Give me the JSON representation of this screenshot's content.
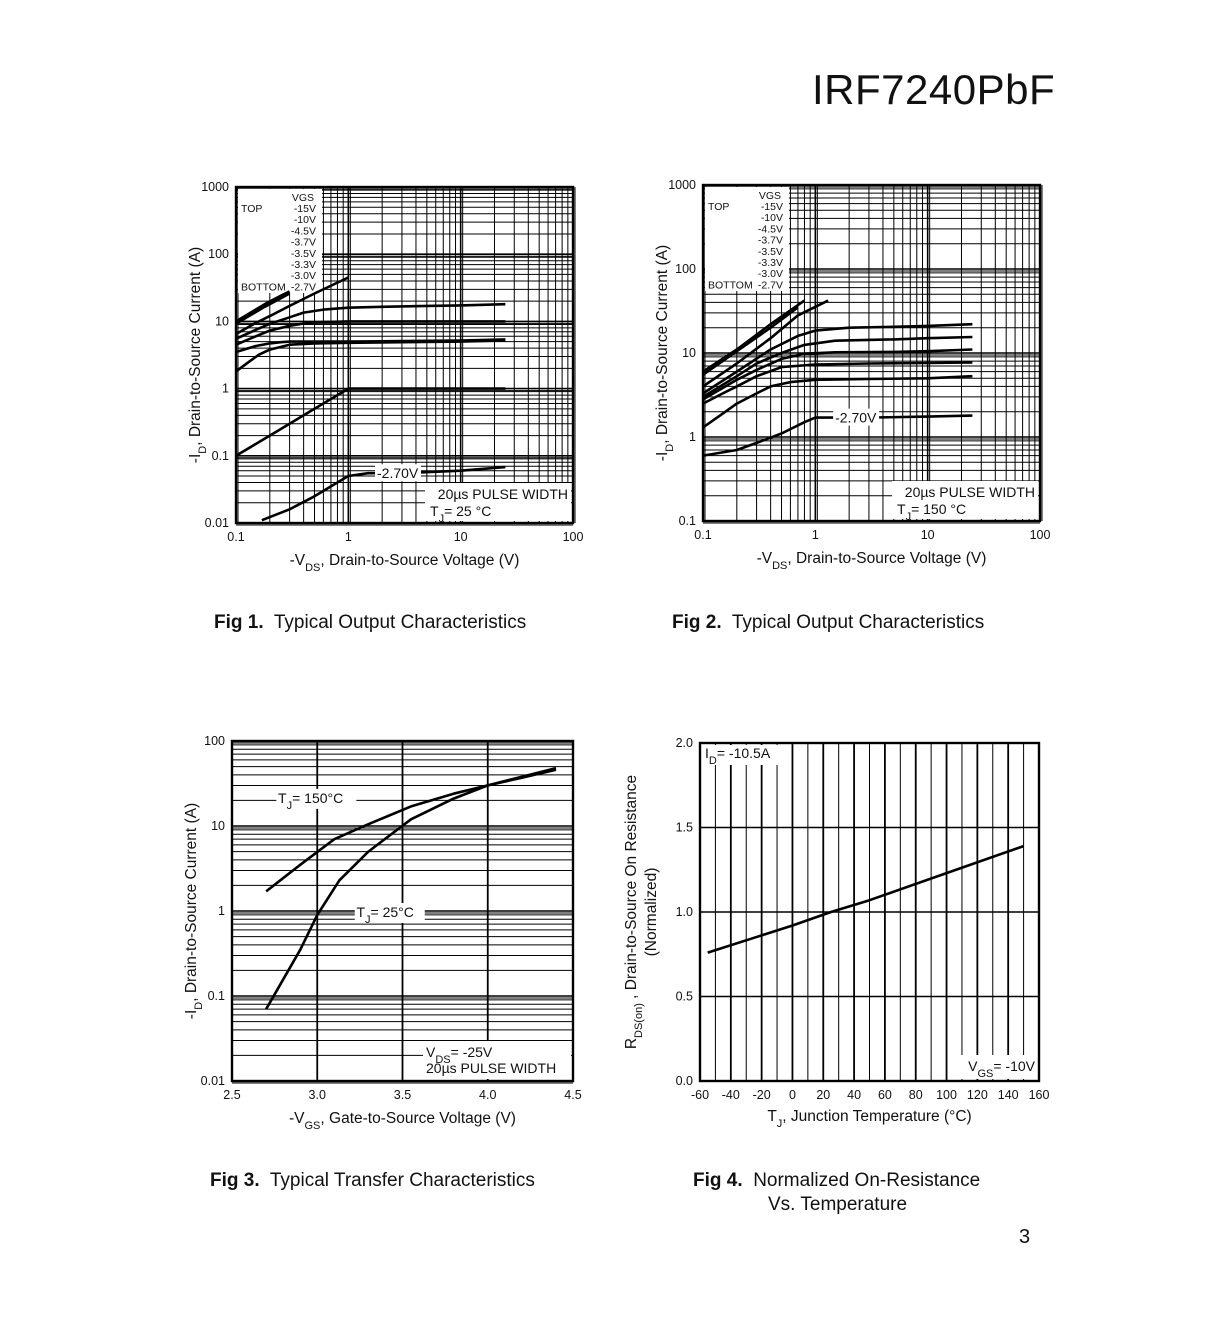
{
  "header": {
    "part_number": "IRF7240PbF"
  },
  "page_number": "3",
  "captions": [
    {
      "num": "Fig 1.",
      "text": "Typical Output Characteristics"
    },
    {
      "num": "Fig 2.",
      "text": "Typical Output Characteristics"
    },
    {
      "num": "Fig 3.",
      "text": "Typical Transfer Characteristics"
    },
    {
      "num": "Fig 4.",
      "text": "Normalized On-Resistance",
      "text2": "Vs. Temperature"
    }
  ],
  "chart_data": [
    {
      "type": "line",
      "x_scale": "log",
      "y_scale": "log",
      "xlim": [
        0.1,
        100
      ],
      "ylim": [
        0.01,
        1000
      ],
      "xticks": [
        "0.1",
        "1",
        "10",
        "100"
      ],
      "yticks": [
        "0.01",
        "0.1",
        "1",
        "10",
        "100",
        "1000"
      ],
      "xlabel": "-V",
      "xlabel_sub": "DS",
      "xlabel_rest": ", Drain-to-Source Voltage (V)",
      "ylabel": "-I",
      "ylabel_sub": "D",
      "ylabel_rest": ",  Drain-to-Source Current (A)",
      "legend": {
        "header": "VGS",
        "top": "TOP",
        "bottom": "BOTTOM",
        "values": [
          "-15V",
          "-10V",
          "-4.5V",
          "-3.7V",
          "-3.5V",
          "-3.3V",
          "-3.0V",
          "-2.7V"
        ]
      },
      "annotations": {
        "curve_label": "-2.70V",
        "pulse": "20µs PULSE WIDTH",
        "tj_prefix": "T",
        "tj_sub": "J",
        "tj_value": "= 25 °C"
      },
      "series": [
        {
          "x": [
            0.1,
            0.13,
            0.18,
            0.25,
            0.3
          ],
          "y": [
            10,
            13,
            18,
            24,
            28
          ]
        },
        {
          "x": [
            0.1,
            0.13,
            0.18,
            0.25,
            0.3
          ],
          "y": [
            9.2,
            12,
            16.5,
            22,
            26
          ]
        },
        {
          "x": [
            0.1,
            0.15,
            0.2,
            0.3,
            0.5,
            1
          ],
          "y": [
            6.5,
            9.5,
            12,
            17,
            26,
            45
          ]
        },
        {
          "x": [
            0.1,
            0.15,
            0.2,
            0.3,
            0.4,
            0.6,
            1,
            2,
            5,
            10,
            25
          ],
          "y": [
            5.5,
            7.5,
            9.2,
            11.5,
            13.5,
            15,
            16,
            16.5,
            17,
            17.3,
            18
          ]
        },
        {
          "x": [
            0.1,
            0.15,
            0.2,
            0.3,
            0.4,
            0.6,
            1,
            3,
            10,
            25
          ],
          "y": [
            4.5,
            6,
            7.3,
            8.6,
            9.3,
            9.8,
            10,
            10,
            10,
            10
          ]
        },
        {
          "x": [
            0.1,
            0.15,
            0.2,
            0.25,
            0.3,
            0.5,
            1,
            3,
            10,
            25
          ],
          "y": [
            3.5,
            4.3,
            4.7,
            4.9,
            5,
            5,
            5,
            5.1,
            5.2,
            5.4
          ]
        },
        {
          "x": [
            0.1,
            0.13,
            0.16,
            0.2,
            0.3,
            0.5,
            1,
            3,
            10,
            25
          ],
          "y": [
            1.8,
            2.5,
            3.2,
            3.8,
            4.5,
            4.7,
            4.8,
            4.9,
            5,
            5.2
          ]
        },
        {
          "x": [
            0.1,
            0.2,
            0.5,
            0.9,
            1,
            3,
            10,
            25
          ],
          "y": [
            0.1,
            0.2,
            0.5,
            0.9,
            1,
            1,
            1,
            1
          ]
        },
        {
          "x": [
            0.17,
            0.3,
            0.5,
            0.8,
            1,
            1.5,
            3,
            10,
            25
          ],
          "y": [
            0.011,
            0.016,
            0.025,
            0.04,
            0.05,
            0.055,
            0.055,
            0.06,
            0.068
          ]
        }
      ]
    },
    {
      "type": "line",
      "x_scale": "log",
      "y_scale": "log",
      "xlim": [
        0.1,
        100
      ],
      "ylim": [
        0.1,
        1000
      ],
      "xticks": [
        "0.1",
        "1",
        "10",
        "100"
      ],
      "yticks": [
        "0.1",
        "1",
        "10",
        "100",
        "1000"
      ],
      "xlabel": "-V",
      "xlabel_sub": "DS",
      "xlabel_rest": ", Drain-to-Source Voltage (V)",
      "ylabel": "-I",
      "ylabel_sub": "D",
      "ylabel_rest": ",  Drain-to-Source Current (A)",
      "legend": {
        "header": "VGS",
        "top": "TOP",
        "bottom": "BOTTOM",
        "values": [
          "-15V",
          "-10V",
          "-4.5V",
          "-3.7V",
          "-3.5V",
          "-3.3V",
          "-3.0V",
          "-2.7V"
        ]
      },
      "annotations": {
        "curve_label": "-2.70V",
        "pulse": "20µs PULSE WIDTH",
        "tj_prefix": "T",
        "tj_sub": "J",
        "tj_value": "= 150 °C"
      },
      "series": [
        {
          "x": [
            0.1,
            0.2,
            0.4,
            0.8
          ],
          "y": [
            6,
            11,
            22,
            42
          ]
        },
        {
          "x": [
            0.1,
            0.2,
            0.4,
            0.7
          ],
          "y": [
            5.5,
            10.5,
            20,
            35
          ]
        },
        {
          "x": [
            0.1,
            0.2,
            0.4,
            0.7,
            1.3
          ],
          "y": [
            4,
            7.5,
            15,
            28,
            42
          ]
        },
        {
          "x": [
            0.1,
            0.2,
            0.4,
            0.7,
            1,
            2,
            5,
            10,
            25
          ],
          "y": [
            3.3,
            6,
            11,
            16,
            18.5,
            20,
            20.5,
            21,
            22
          ]
        },
        {
          "x": [
            0.1,
            0.2,
            0.3,
            0.5,
            0.8,
            1.5,
            5,
            10,
            25
          ],
          "y": [
            3,
            5.3,
            7.5,
            10,
            12.5,
            14,
            14.5,
            15,
            15.5
          ]
        },
        {
          "x": [
            0.1,
            0.2,
            0.3,
            0.5,
            0.8,
            1.5,
            5,
            10,
            25
          ],
          "y": [
            2.8,
            4.8,
            6.3,
            8.5,
            9.8,
            10.2,
            10.3,
            10.5,
            11
          ]
        },
        {
          "x": [
            0.1,
            0.15,
            0.2,
            0.3,
            0.5,
            1,
            3,
            10,
            25
          ],
          "y": [
            2.5,
            3.3,
            4,
            5.3,
            6.8,
            7.3,
            7.5,
            7.6,
            7.7
          ]
        },
        {
          "x": [
            0.1,
            0.15,
            0.2,
            0.3,
            0.4,
            0.6,
            1,
            3,
            10,
            25
          ],
          "y": [
            1.3,
            1.9,
            2.5,
            3.3,
            4,
            4.5,
            4.8,
            4.9,
            5,
            5.3
          ]
        },
        {
          "x": [
            0.1,
            0.2,
            0.3,
            0.5,
            0.8,
            1,
            3,
            10,
            25
          ],
          "y": [
            0.6,
            0.7,
            0.85,
            1.1,
            1.5,
            1.7,
            1.7,
            1.75,
            1.8
          ]
        }
      ]
    },
    {
      "type": "line",
      "x_scale": "linear",
      "y_scale": "log",
      "xlim": [
        2.5,
        4.5
      ],
      "ylim": [
        0.01,
        100
      ],
      "xticks": [
        "2.5",
        "3.0",
        "3.5",
        "4.0",
        "4.5"
      ],
      "yticks": [
        "0.01",
        "0.1",
        "1",
        "10",
        "100"
      ],
      "xlabel": "-V",
      "xlabel_sub": "GS",
      "xlabel_rest": ", Gate-to-Source Voltage (V)",
      "ylabel": "-I",
      "ylabel_sub": "D",
      "ylabel_rest": ",  Drain-to-Source Current (A)",
      "annotations": {
        "tj_prefix": "T",
        "tj_sub": "J",
        "tj150_value": "= 150°C",
        "tj25_value": "= 25°C",
        "vds_prefix": "V",
        "vds_sub": "DS",
        "vds_value": "= -25V",
        "pulse": "20µs PULSE WIDTH"
      },
      "series": [
        {
          "name": "T",
          "x": [
            2.7,
            2.9,
            3.1,
            3.3,
            3.55,
            3.8,
            4.0,
            4.2,
            4.4
          ],
          "y": [
            1.7,
            3.5,
            7,
            10.5,
            17,
            24,
            30,
            37,
            46
          ]
        },
        {
          "name": "T",
          "x": [
            2.7,
            2.9,
            3.0,
            3.13,
            3.3,
            3.55,
            3.8,
            4.0,
            4.2,
            4.4
          ],
          "y": [
            0.07,
            0.35,
            0.9,
            2.3,
            5,
            12,
            21,
            30,
            38,
            48
          ]
        }
      ]
    },
    {
      "type": "line",
      "x_scale": "linear",
      "y_scale": "linear",
      "xlim": [
        -60,
        160
      ],
      "ylim": [
        0.0,
        2.0
      ],
      "xticks": [
        "-60",
        "-40",
        "-20",
        "0",
        "20",
        "40",
        "60",
        "80",
        "100",
        "120",
        "140",
        "160"
      ],
      "yticks": [
        "0.0",
        "0.5",
        "1.0",
        "1.5",
        "2.0"
      ],
      "xlabel": "T",
      "xlabel_sub": "J",
      "xlabel_rest": ", Junction Temperature (°C)",
      "ylabel": "R",
      "ylabel_sub": "DS(on)",
      "ylabel_rest": " , Drain-to-Source On Resistance",
      "ylabel2": "(Normalized)",
      "annotations": {
        "id_prefix": "I",
        "id_sub": "D",
        "id_value": "= -10.5A",
        "vgs_prefix": "V",
        "vgs_sub": "GS",
        "vgs_value": "= -10V"
      },
      "series": [
        {
          "x": [
            -55,
            0,
            25,
            50,
            100,
            150
          ],
          "y": [
            0.76,
            0.92,
            1.0,
            1.07,
            1.23,
            1.39
          ]
        }
      ]
    }
  ]
}
